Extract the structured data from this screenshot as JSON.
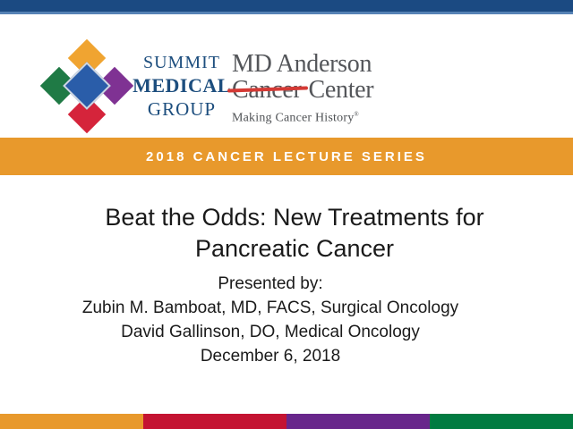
{
  "colors": {
    "top_bar_navy": "#1b4a82",
    "top_bar_accent": "#5682b5",
    "banner_orange": "#e8992c",
    "summit_navy_text": "#1d4e7e",
    "mda_gray_text": "#54565a",
    "mda_strike_red": "#d43a35",
    "diamond_top_orange": "#f0a431",
    "diamond_left_green": "#1f7a45",
    "diamond_right_purple": "#7f3293",
    "diamond_bottom_red": "#d5243b",
    "diamond_center_blue": "#2a5da9",
    "title_text": "#1a1a1a"
  },
  "header": {
    "summit_logo": {
      "line1": "SUMMIT",
      "line2": "MEDICAL",
      "line3": "GROUP"
    },
    "md_anderson_logo": {
      "line1": "MD Anderson",
      "struck_word": "Cancer",
      "line2_rest": "Center",
      "tagline": "Making Cancer History",
      "trademark": "®"
    }
  },
  "banner": {
    "label": "2018 CANCER LECTURE SERIES"
  },
  "content": {
    "title_lines": [
      "Beat the Odds: New Treatments for",
      "Pancreatic Cancer"
    ],
    "subtitle_lines": [
      "Presented by:",
      "Zubin M. Bamboat, MD, FACS, Surgical Oncology",
      "David Gallinson, DO, Medical Oncology",
      "December 6, 2018"
    ]
  },
  "footer_stripe": {
    "segment_colors": [
      "#e8992c",
      "#c41432",
      "#68268b",
      "#017b41"
    ]
  }
}
